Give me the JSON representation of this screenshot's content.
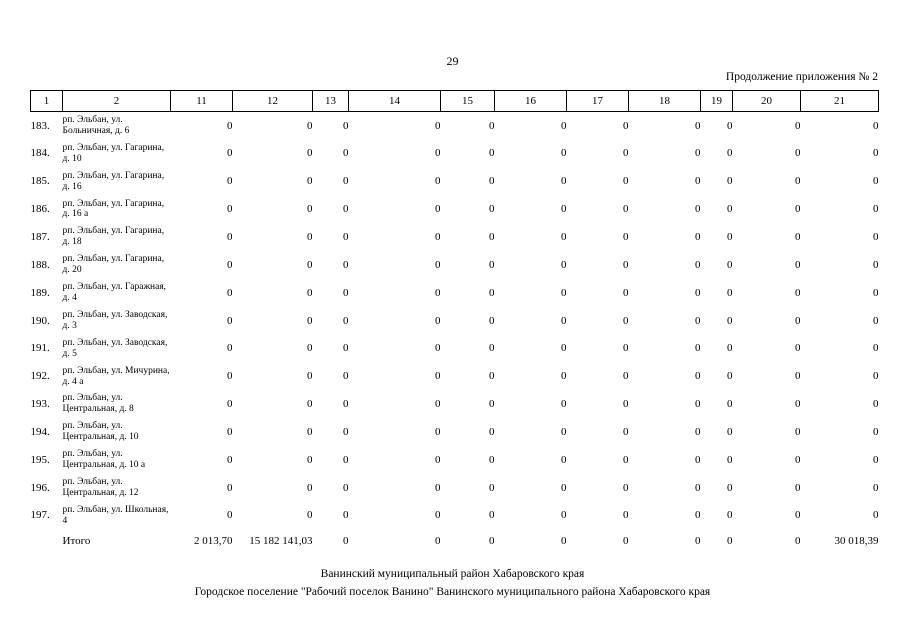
{
  "page": {
    "number": "29",
    "continuation": "Продолжение приложения № 2"
  },
  "table": {
    "headers": [
      "1",
      "2",
      "11",
      "12",
      "13",
      "14",
      "15",
      "16",
      "17",
      "18",
      "19",
      "20",
      "21"
    ],
    "rows": [
      {
        "num": "183.",
        "address": "рп. Эльбан, ул. Больничная, д. 6",
        "values": [
          "0",
          "0",
          "0",
          "0",
          "0",
          "0",
          "0",
          "0",
          "0",
          "0",
          "0"
        ]
      },
      {
        "num": "184.",
        "address": "рп. Эльбан, ул. Гагарина, д. 10",
        "values": [
          "0",
          "0",
          "0",
          "0",
          "0",
          "0",
          "0",
          "0",
          "0",
          "0",
          "0"
        ]
      },
      {
        "num": "185.",
        "address": "рп. Эльбан, ул. Гагарина, д. 16",
        "values": [
          "0",
          "0",
          "0",
          "0",
          "0",
          "0",
          "0",
          "0",
          "0",
          "0",
          "0"
        ]
      },
      {
        "num": "186.",
        "address": "рп. Эльбан, ул. Гагарина, д. 16 а",
        "values": [
          "0",
          "0",
          "0",
          "0",
          "0",
          "0",
          "0",
          "0",
          "0",
          "0",
          "0"
        ]
      },
      {
        "num": "187.",
        "address": "рп. Эльбан, ул. Гагарина, д. 18",
        "values": [
          "0",
          "0",
          "0",
          "0",
          "0",
          "0",
          "0",
          "0",
          "0",
          "0",
          "0"
        ]
      },
      {
        "num": "188.",
        "address": "рп. Эльбан, ул. Гагарина, д. 20",
        "values": [
          "0",
          "0",
          "0",
          "0",
          "0",
          "0",
          "0",
          "0",
          "0",
          "0",
          "0"
        ]
      },
      {
        "num": "189.",
        "address": "рп. Эльбан, ул. Гаражная, д. 4",
        "values": [
          "0",
          "0",
          "0",
          "0",
          "0",
          "0",
          "0",
          "0",
          "0",
          "0",
          "0"
        ]
      },
      {
        "num": "190.",
        "address": "рп. Эльбан, ул. Заводская, д. 3",
        "values": [
          "0",
          "0",
          "0",
          "0",
          "0",
          "0",
          "0",
          "0",
          "0",
          "0",
          "0"
        ]
      },
      {
        "num": "191.",
        "address": "рп. Эльбан, ул. Заводская, д. 5",
        "values": [
          "0",
          "0",
          "0",
          "0",
          "0",
          "0",
          "0",
          "0",
          "0",
          "0",
          "0"
        ]
      },
      {
        "num": "192.",
        "address": "рп. Эльбан, ул. Мичурина, д. 4 а",
        "values": [
          "0",
          "0",
          "0",
          "0",
          "0",
          "0",
          "0",
          "0",
          "0",
          "0",
          "0"
        ]
      },
      {
        "num": "193.",
        "address": "рп. Эльбан, ул. Центральная, д. 8",
        "values": [
          "0",
          "0",
          "0",
          "0",
          "0",
          "0",
          "0",
          "0",
          "0",
          "0",
          "0"
        ]
      },
      {
        "num": "194.",
        "address": "рп. Эльбан, ул. Центральная, д. 10",
        "values": [
          "0",
          "0",
          "0",
          "0",
          "0",
          "0",
          "0",
          "0",
          "0",
          "0",
          "0"
        ]
      },
      {
        "num": "195.",
        "address": "рп. Эльбан, ул. Центральная, д. 10 а",
        "values": [
          "0",
          "0",
          "0",
          "0",
          "0",
          "0",
          "0",
          "0",
          "0",
          "0",
          "0"
        ]
      },
      {
        "num": "196.",
        "address": "рп. Эльбан, ул. Центральная, д. 12",
        "values": [
          "0",
          "0",
          "0",
          "0",
          "0",
          "0",
          "0",
          "0",
          "0",
          "0",
          "0"
        ]
      },
      {
        "num": "197.",
        "address": "рп. Эльбан, ул. Школьная, 4",
        "values": [
          "0",
          "0",
          "0",
          "0",
          "0",
          "0",
          "0",
          "0",
          "0",
          "0",
          "0"
        ]
      }
    ],
    "total": {
      "label": "Итого",
      "values": [
        "2 013,70",
        "15 182 141,03",
        "0",
        "0",
        "0",
        "0",
        "0",
        "0",
        "0",
        "0",
        "30 018,39"
      ]
    }
  },
  "footer": {
    "line1": "Ванинский муниципальный район Хабаровского края",
    "line2": "Городское поселение \"Рабочий поселок Ванино\" Ванинского муниципального района Хабаровского края"
  }
}
